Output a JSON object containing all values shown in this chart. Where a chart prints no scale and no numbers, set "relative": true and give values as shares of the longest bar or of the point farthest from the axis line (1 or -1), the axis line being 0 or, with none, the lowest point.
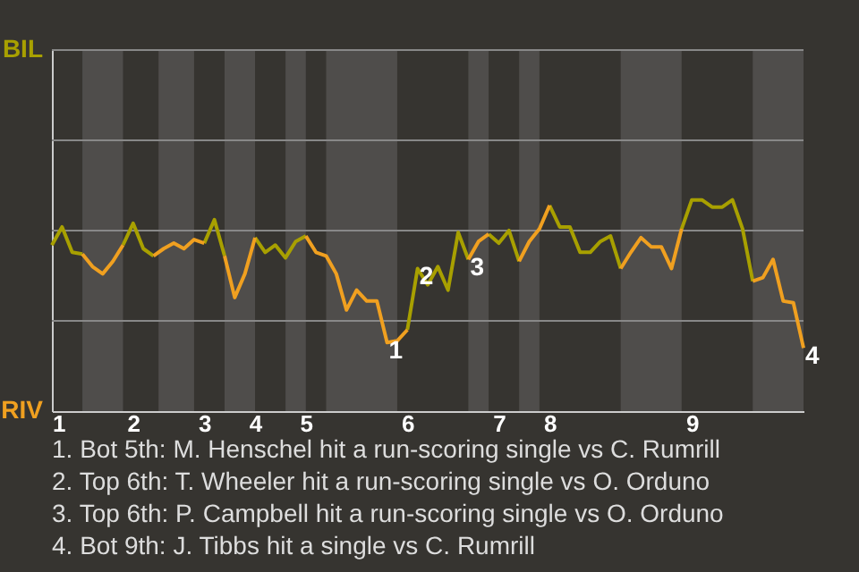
{
  "chart_data": {
    "type": "line",
    "relative": true,
    "ref_lines": [
      {
        "axis": "y",
        "value": 0.427,
        "color": "#888888"
      },
      {
        "axis": "y",
        "value": 0.855,
        "color": "#888888"
      },
      {
        "axis": "y",
        "value": 1.282,
        "color": "#888888"
      }
    ],
    "categories": [
      "1",
      null,
      null,
      null,
      null,
      null,
      null,
      null,
      "2",
      null,
      null,
      null,
      null,
      null,
      null,
      "3",
      null,
      null,
      null,
      null,
      "4",
      null,
      null,
      null,
      null,
      "5",
      null,
      null,
      null,
      null,
      null,
      null,
      null,
      null,
      null,
      "6",
      null,
      null,
      null,
      null,
      null,
      null,
      null,
      null,
      "7",
      null,
      null,
      null,
      null,
      "8",
      null,
      null,
      null,
      null,
      null,
      null,
      null,
      null,
      null,
      null,
      null,
      null,
      null,
      "9",
      null,
      null,
      null,
      null,
      null,
      null,
      null,
      null,
      null,
      null,
      null
    ],
    "series": [
      {
        "color": "#a8a000",
        "values": [
          0.786,
          0.872,
          0.752,
          0.744,
          null,
          null,
          null,
          0.786,
          0.889,
          0.769,
          0.735,
          null,
          null,
          null,
          null,
          0.795,
          0.906,
          0.735,
          null,
          null,
          0.821,
          0.752,
          0.786,
          0.726,
          0.803,
          0.829,
          null,
          null,
          null,
          null,
          null,
          null,
          null,
          null,
          null,
          0.385,
          0.675,
          0.598,
          0.684,
          0.573,
          0.846,
          0.718,
          null,
          0.838,
          0.795,
          0.855,
          0.709,
          null,
          null,
          0.974,
          0.872,
          0.872,
          0.752,
          0.752,
          0.803,
          0.829,
          0.675,
          null,
          null,
          null,
          null,
          null,
          0.863,
          1,
          1,
          0.966,
          0.966,
          1,
          0.863,
          0.615,
          null,
          null,
          null,
          null,
          null
        ]
      },
      {
        "color": "#f0a020",
        "values": [
          null,
          null,
          null,
          0.744,
          0.684,
          0.65,
          0.709,
          0.786,
          null,
          null,
          0.735,
          0.769,
          0.795,
          0.769,
          0.812,
          0.795,
          null,
          0.735,
          0.538,
          0.65,
          0.821,
          null,
          null,
          null,
          null,
          0.829,
          0.752,
          0.735,
          0.65,
          0.479,
          0.573,
          0.521,
          0.521,
          0.325,
          0.333,
          0.385,
          null,
          null,
          null,
          null,
          null,
          0.718,
          0.803,
          0.838,
          null,
          null,
          0.709,
          0.803,
          0.863,
          0.974,
          null,
          null,
          null,
          null,
          null,
          null,
          0.675,
          0.752,
          0.821,
          0.778,
          0.778,
          0.675,
          0.863,
          null,
          null,
          null,
          null,
          null,
          null,
          0.615,
          0.632,
          0.718,
          0.521,
          0.513,
          0.299
        ]
      }
    ],
    "annotations": [
      "BIL",
      "RIV",
      {
        "text": "1",
        "y": 0.325
      },
      {
        "text": "2",
        "y": 0.675
      },
      {
        "text": "3",
        "y": 0.718
      },
      {
        "text": "4",
        "y": 0.299
      },
      "1. Bot 5th: M. Henschel hit a run-scoring single vs C. Rumrill",
      "2. Top 6th: T. Wheeler hit a run-scoring single vs O. Orduno",
      "3. Top 6th: P. Campbell hit a run-scoring single vs O. Orduno",
      "4. Bot 9th: J. Tibbs hit a single vs C. Rumrill"
    ]
  }
}
